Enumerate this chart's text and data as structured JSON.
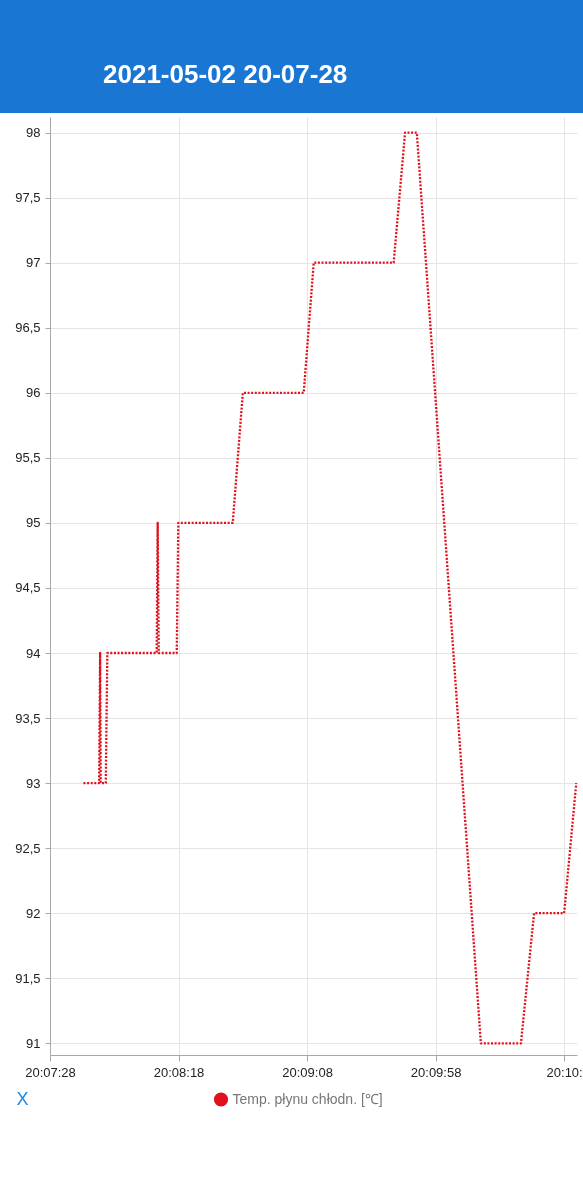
{
  "chart_data": {
    "type": "line",
    "title": "2021-05-02 20-07-28",
    "xlabel": "X",
    "x": [
      20.12806,
      20.12975,
      20.12986,
      20.12992,
      20.13047,
      20.13064,
      20.13597,
      20.13608,
      20.13619,
      20.13814,
      20.13831,
      20.14419,
      20.14528,
      20.15186,
      20.15294,
      20.16158,
      20.16281,
      20.16408,
      20.171,
      20.17533,
      20.17675,
      20.18,
      20.18131
    ],
    "series": [
      {
        "name": "Temp. płynu chłodn. [℃]",
        "color": "#e0101c",
        "values": [
          93,
          93,
          94,
          93,
          93,
          94,
          94,
          95,
          94,
          94,
          95,
          95,
          96,
          96,
          97,
          97,
          98,
          98,
          91,
          91,
          92,
          92,
          93
        ]
      }
    ],
    "xlim": [
      20.124444,
      20.181389
    ],
    "xticks": [
      {
        "value": 20.124444,
        "label": "20:07:28"
      },
      {
        "value": 20.138333,
        "label": "20:08:18"
      },
      {
        "value": 20.152222,
        "label": "20:09:08"
      },
      {
        "value": 20.166111,
        "label": "20:09:58"
      },
      {
        "value": 20.18,
        "label": "20:10:"
      }
    ],
    "ylim": [
      90.91,
      98.12
    ],
    "yticks": [
      91,
      {
        "value": 91.5,
        "label": "91,5"
      },
      92,
      {
        "value": 92.5,
        "label": "92,5"
      },
      93,
      {
        "value": 93.5,
        "label": "93,5"
      },
      94,
      {
        "value": 94.5,
        "label": "94,5"
      },
      95,
      {
        "value": 95.5,
        "label": "95,5"
      },
      96,
      {
        "value": 96.5,
        "label": "96,5"
      },
      97,
      {
        "value": 97.5,
        "label": "97,5"
      },
      98
    ],
    "grid": true,
    "legend": "bottom",
    "marker": "none",
    "line_style": "dotted"
  }
}
